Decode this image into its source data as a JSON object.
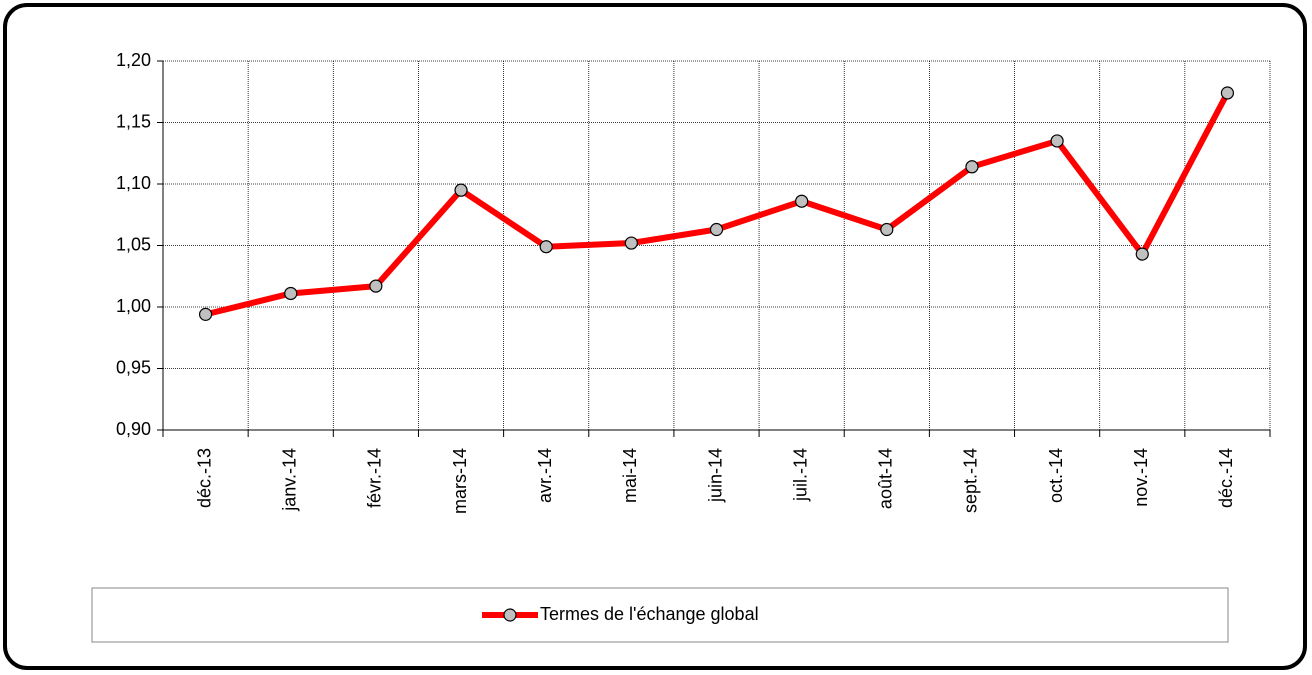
{
  "chart_data": {
    "type": "line",
    "categories": [
      "déc.-13",
      "janv.-14",
      "févr.-14",
      "mars-14",
      "avr.-14",
      "mai-14",
      "juin-14",
      "juil.-14",
      "août-14",
      "sept.-14",
      "oct.-14",
      "nov.-14",
      "déc.-14"
    ],
    "series": [
      {
        "name": "Termes de l'échange global",
        "color": "#ff0000",
        "values": [
          0.994,
          1.011,
          1.017,
          1.095,
          1.049,
          1.052,
          1.063,
          1.086,
          1.063,
          1.114,
          1.135,
          1.043,
          1.174
        ]
      }
    ],
    "ylim": [
      0.9,
      1.2
    ],
    "yticks": [
      {
        "value": 0.9,
        "label": "0,90"
      },
      {
        "value": 0.95,
        "label": "0,95"
      },
      {
        "value": 1.0,
        "label": "1,00"
      },
      {
        "value": 1.05,
        "label": "1,05"
      },
      {
        "value": 1.1,
        "label": "1,10"
      },
      {
        "value": 1.15,
        "label": "1,15"
      },
      {
        "value": 1.2,
        "label": "1,20"
      }
    ],
    "grid": true,
    "legend": "bottom"
  }
}
